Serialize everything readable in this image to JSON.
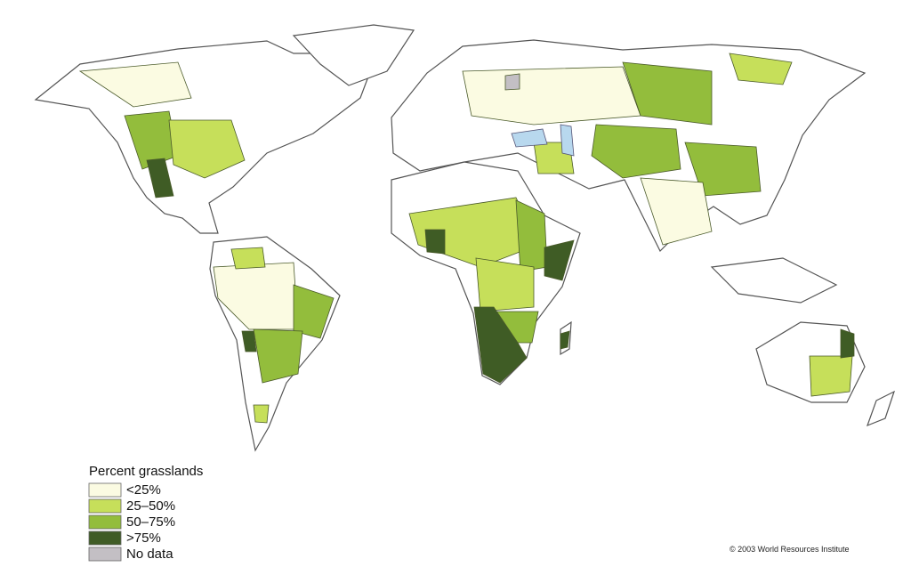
{
  "legend": {
    "title": "Percent grasslands",
    "items": [
      {
        "label": "<25%",
        "color": "#fbfbe2"
      },
      {
        "label": "25–50%",
        "color": "#c6df5a"
      },
      {
        "label": "50–75%",
        "color": "#93bd3c"
      },
      {
        "label": ">75%",
        "color": "#3f5c25"
      },
      {
        "label": "No data",
        "color": "#c3bfc4"
      }
    ]
  },
  "credit": "© 2003 World Resources Institute"
}
